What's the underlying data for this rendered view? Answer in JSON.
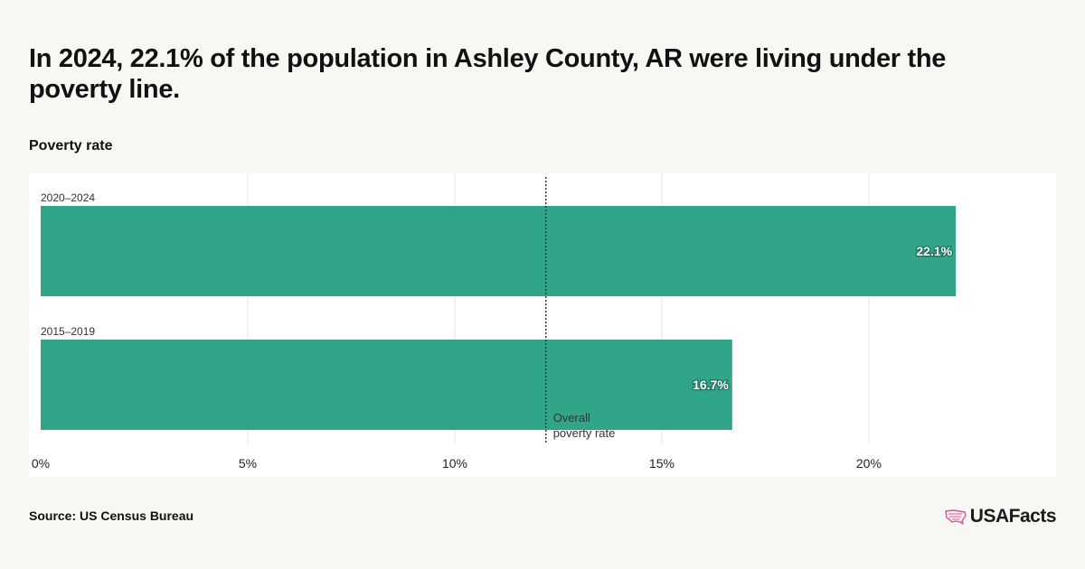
{
  "title": "In 2024, 22.1% of the population in Ashley County, AR were living under the poverty line.",
  "source": "Source: US Census Bureau",
  "brand": {
    "name": "USAFacts",
    "icon": "us-map-icon"
  },
  "colors": {
    "bar": "#30a58a",
    "background": "#f7f7f3",
    "plot": "#ffffff"
  },
  "chart_data": {
    "type": "bar",
    "orientation": "horizontal",
    "subtitle": "Poverty rate",
    "categories": [
      "2020–2024",
      "2015–2019"
    ],
    "values": [
      22.1,
      16.7
    ],
    "value_labels": [
      "22.1%",
      "16.7%"
    ],
    "xlim": [
      0,
      24.5
    ],
    "xticks": [
      0,
      5,
      10,
      15,
      20
    ],
    "xtick_labels": [
      "0%",
      "5%",
      "10%",
      "15%",
      "20%"
    ],
    "grid": true,
    "reference_line": {
      "value": 12.2,
      "label_lines": [
        "Overall",
        "poverty rate"
      ],
      "style": "dotted"
    }
  }
}
